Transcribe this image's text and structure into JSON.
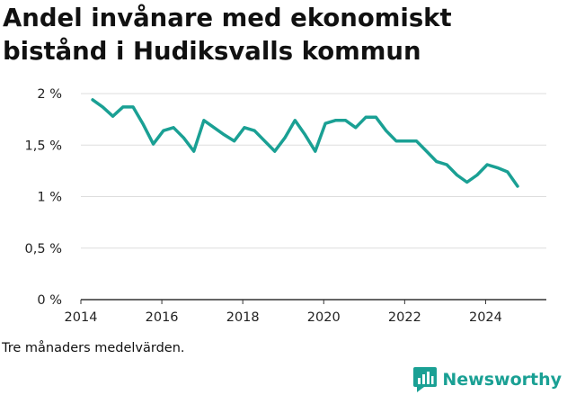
{
  "title": "Andel invånare med ekonomiskt bistånd i Hudiksvalls kommun",
  "note": "Tre månaders medelvärden.",
  "brand": {
    "name": "Newsworthy",
    "icon": "newsworthy-logo-icon",
    "color": "#1aa094"
  },
  "chart_data": {
    "type": "line",
    "title": "Andel invånare med ekonomiskt bistånd i Hudiksvalls kommun",
    "xlabel": "",
    "ylabel": "",
    "xlim": [
      2014,
      2025.5
    ],
    "ylim": [
      0,
      2
    ],
    "x_ticks": [
      2014,
      2016,
      2018,
      2020,
      2022,
      2024
    ],
    "y_ticks": [
      {
        "value": 0,
        "label": "0 %"
      },
      {
        "value": 0.5,
        "label": "0,5 %"
      },
      {
        "value": 1,
        "label": "1 %"
      },
      {
        "value": 1.5,
        "label": "1,5 %"
      },
      {
        "value": 2,
        "label": "2 %"
      }
    ],
    "grid": "horizontal",
    "legend": "none",
    "color": "#1aa094",
    "series": [
      {
        "x": [
          2014.29,
          2014.54,
          2014.79,
          2015.04,
          2015.29,
          2015.54,
          2015.79,
          2016.04,
          2016.29,
          2016.54,
          2016.79,
          2017.04,
          2017.29,
          2017.54,
          2017.79,
          2018.04,
          2018.29,
          2018.54,
          2018.79,
          2019.04,
          2019.29,
          2019.54,
          2019.79,
          2020.04,
          2020.29,
          2020.54,
          2020.79,
          2021.04,
          2021.29,
          2021.54,
          2021.79,
          2022.04,
          2022.29,
          2022.54,
          2022.79,
          2023.04,
          2023.29,
          2023.54,
          2023.79,
          2024.04,
          2024.29,
          2024.54,
          2024.79
        ],
        "values": [
          1.94,
          1.87,
          1.78,
          1.87,
          1.87,
          1.7,
          1.51,
          1.64,
          1.67,
          1.57,
          1.44,
          1.74,
          1.67,
          1.6,
          1.54,
          1.67,
          1.64,
          1.54,
          1.44,
          1.57,
          1.74,
          1.6,
          1.44,
          1.71,
          1.74,
          1.74,
          1.67,
          1.77,
          1.77,
          1.64,
          1.54,
          1.54,
          1.54,
          1.44,
          1.34,
          1.31,
          1.21,
          1.14,
          1.21,
          1.31,
          1.28,
          1.24,
          1.1
        ]
      }
    ]
  }
}
